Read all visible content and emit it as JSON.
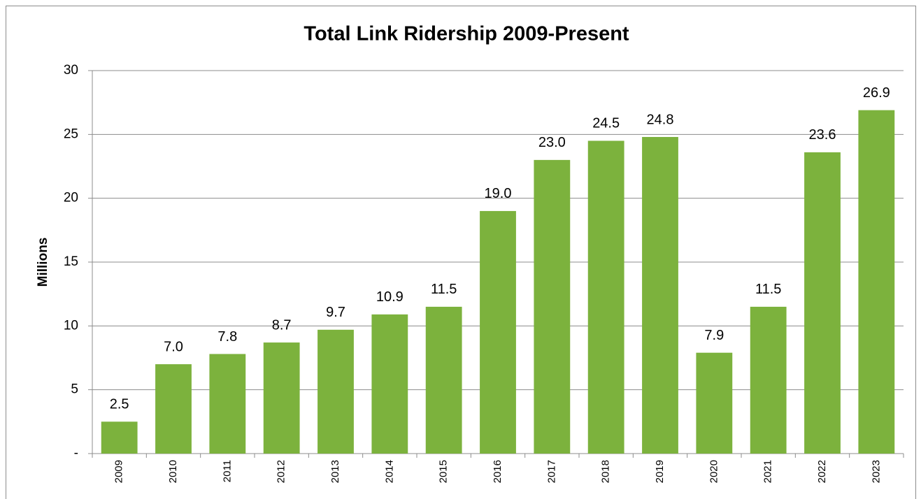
{
  "chart_data": {
    "type": "bar",
    "title": "Total Link Ridership 2009-Present",
    "y_label": "Millions",
    "categories": [
      "2009",
      "2010",
      "2011",
      "2012",
      "2013",
      "2014",
      "2015",
      "2016",
      "2017",
      "2018",
      "2019",
      "2020",
      "2021",
      "2022",
      "2023"
    ],
    "values": [
      2.5,
      7,
      7.8,
      8.7,
      9.7,
      10.9,
      11.5,
      19,
      23,
      24.5,
      24.8,
      7.9,
      11.5,
      23.6,
      26.9
    ],
    "value_labels": [
      "2.5",
      "7.0",
      "7.8",
      "8.7",
      "9.7",
      "10.9",
      "11.5",
      "19.0",
      "23.0",
      "24.5",
      "24.8",
      "7.9",
      "11.5",
      "23.6",
      "26.9"
    ],
    "color": "#7cb23d",
    "ylim": [
      0,
      30
    ],
    "yticks": [
      {
        "value": 0,
        "label": "-"
      },
      5,
      10,
      15,
      20,
      25,
      30
    ],
    "grid": true
  }
}
